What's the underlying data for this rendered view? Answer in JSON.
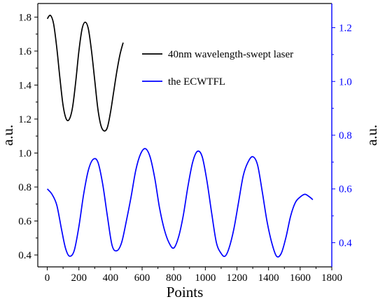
{
  "chart_data": {
    "type": "line",
    "xlabel": "Points",
    "ylabel_left": "a.u.",
    "ylabel_right": "a.u.",
    "xlim": [
      -60,
      1800
    ],
    "ylim_left": [
      0.33,
      1.88
    ],
    "ylim_right": [
      0.31,
      1.29
    ],
    "x_ticks": [
      0,
      200,
      400,
      600,
      800,
      1000,
      1200,
      1400,
      1600,
      1800
    ],
    "y_left_ticks": [
      0.4,
      0.6,
      0.8,
      1.0,
      1.2,
      1.4,
      1.6,
      1.8
    ],
    "y_right_ticks": [
      0.4,
      0.6,
      0.8,
      1.0,
      1.2
    ],
    "y_left_tick_labels": [
      "0.4",
      "0.6",
      "0.8",
      "1.0",
      "1.2",
      "1.4",
      "1.6",
      "1.8"
    ],
    "y_right_tick_labels": [
      "0.4",
      "0.6",
      "0.8",
      "1.0",
      "1.2"
    ],
    "legend_position": "top-right",
    "series": [
      {
        "name": "40nm wavelength-swept laser",
        "axis": "left",
        "color": "#000000",
        "x": [
          0,
          20,
          40,
          60,
          80,
          100,
          120,
          140,
          160,
          180,
          200,
          220,
          240,
          260,
          280,
          300,
          320,
          340,
          360,
          380,
          400,
          420,
          440,
          460,
          480
        ],
        "y": [
          1.79,
          1.81,
          1.76,
          1.62,
          1.44,
          1.28,
          1.2,
          1.2,
          1.27,
          1.42,
          1.6,
          1.73,
          1.77,
          1.73,
          1.6,
          1.43,
          1.26,
          1.16,
          1.13,
          1.15,
          1.24,
          1.36,
          1.48,
          1.58,
          1.65
        ]
      },
      {
        "name": "the ECWTFL",
        "axis": "right",
        "color": "#0000ff",
        "x": [
          0,
          30,
          60,
          90,
          115,
          140,
          170,
          200,
          230,
          260,
          290,
          320,
          350,
          380,
          410,
          440,
          470,
          500,
          530,
          560,
          590,
          620,
          650,
          680,
          710,
          740,
          770,
          800,
          830,
          860,
          890,
          920,
          950,
          980,
          1010,
          1040,
          1070,
          1100,
          1125,
          1150,
          1180,
          1210,
          1240,
          1270,
          1300,
          1330,
          1360,
          1390,
          1420,
          1450,
          1480,
          1510,
          1540,
          1570,
          1600,
          1630,
          1660,
          1680
        ],
        "y": [
          0.6,
          0.58,
          0.54,
          0.45,
          0.38,
          0.35,
          0.37,
          0.46,
          0.58,
          0.67,
          0.71,
          0.7,
          0.62,
          0.5,
          0.39,
          0.37,
          0.4,
          0.48,
          0.57,
          0.67,
          0.73,
          0.75,
          0.72,
          0.64,
          0.53,
          0.45,
          0.4,
          0.38,
          0.42,
          0.5,
          0.61,
          0.7,
          0.74,
          0.72,
          0.63,
          0.51,
          0.4,
          0.36,
          0.35,
          0.38,
          0.45,
          0.55,
          0.65,
          0.7,
          0.72,
          0.69,
          0.59,
          0.48,
          0.4,
          0.35,
          0.36,
          0.42,
          0.5,
          0.55,
          0.57,
          0.58,
          0.57,
          0.56
        ]
      }
    ]
  }
}
